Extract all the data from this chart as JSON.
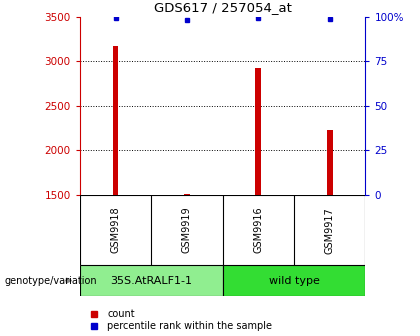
{
  "title": "GDS617 / 257054_at",
  "samples": [
    "GSM9918",
    "GSM9919",
    "GSM9916",
    "GSM9917"
  ],
  "counts": [
    3170,
    1510,
    2930,
    2230
  ],
  "percentiles": [
    99.5,
    98.0,
    99.5,
    98.5
  ],
  "ylim_left": [
    1500,
    3500
  ],
  "ylim_right": [
    0,
    100
  ],
  "yticks_left": [
    1500,
    2000,
    2500,
    3000,
    3500
  ],
  "yticks_right": [
    0,
    25,
    50,
    75,
    100
  ],
  "groups": [
    {
      "label": "35S.AtRALF1-1",
      "samples": [
        0,
        1
      ],
      "color": "#90EE90"
    },
    {
      "label": "wild type",
      "samples": [
        2,
        3
      ],
      "color": "#33DD33"
    }
  ],
  "bar_color": "#CC0000",
  "dot_color": "#0000CC",
  "group_label": "genotype/variation",
  "legend_count": "count",
  "legend_percentile": "percentile rank within the sample",
  "background_color": "#ffffff",
  "plot_bg": "#ffffff",
  "sample_bg": "#cccccc",
  "bar_width": 0.08,
  "x_positions": [
    0,
    1,
    2,
    3
  ]
}
